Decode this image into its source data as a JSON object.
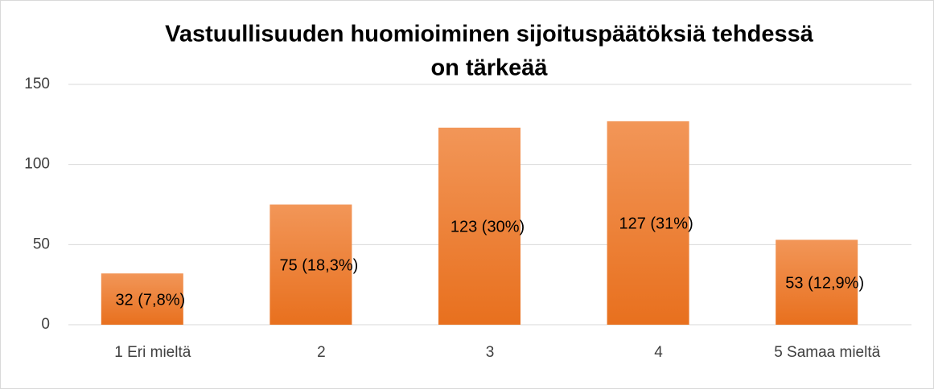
{
  "chart_data": {
    "type": "bar",
    "title": [
      "Vastuullisuuden huomioiminen sijoituspäätöksiä tehdessä",
      "on tärkeää"
    ],
    "categories": [
      "1 Eri mieltä",
      "2",
      "3",
      "4",
      "5 Samaa mieltä"
    ],
    "values": [
      32,
      75,
      123,
      127,
      53
    ],
    "value_labels": [
      "32 (7,8%)",
      "75 (18,3%)",
      "123 (30%)",
      "127 (31%)",
      "53 (12,9%)"
    ],
    "color": "#ed7d31",
    "ylim": [
      0,
      150
    ],
    "yticks": [
      0,
      50,
      100,
      150
    ],
    "grid": true
  }
}
